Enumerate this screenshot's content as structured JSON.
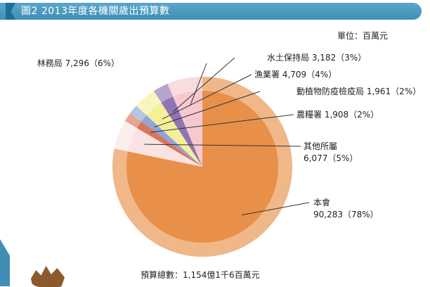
{
  "figure": {
    "title": "圖2   2013年度各機關歲出預算數",
    "unit": "單位：百萬元",
    "total": "預算總數：1,154億1千6百萬元"
  },
  "chart_data": {
    "type": "pie",
    "title": "圖2   2013年度各機關歲出預算數",
    "unit": "百萬元",
    "slices": [
      {
        "name": "本會",
        "value": 90283,
        "percent": "78%",
        "label": "本會",
        "value_label": "90,283（78%）",
        "color": "#e8904a"
      },
      {
        "name": "其他所屬",
        "value": 6077,
        "percent": "5%",
        "label": "其他所屬",
        "value_label": "6,077（5%）",
        "color": "#fbe3e3"
      },
      {
        "name": "農糧署",
        "value": 1908,
        "percent": "2%",
        "label": "農糧署 1,908（2%）",
        "color": "#d9765a"
      },
      {
        "name": "動植物防疫檢疫局",
        "value": 1961,
        "percent": "2%",
        "label": "動植物防疫檢疫局 1,961（2%）",
        "color": "#8fa6d6"
      },
      {
        "name": "漁業署",
        "value": 4709,
        "percent": "4%",
        "label": "漁業署 4,709（4%）",
        "color": "#f6ef9a"
      },
      {
        "name": "水土保持局",
        "value": 3182,
        "percent": "3%",
        "label": "水土保持局 3,182（3%）",
        "color": "#8e74b4"
      },
      {
        "name": "林務局",
        "value": 7296,
        "percent": "6%",
        "label": "林務局 7,296（6%）",
        "color": "#f6c9cf"
      }
    ]
  }
}
